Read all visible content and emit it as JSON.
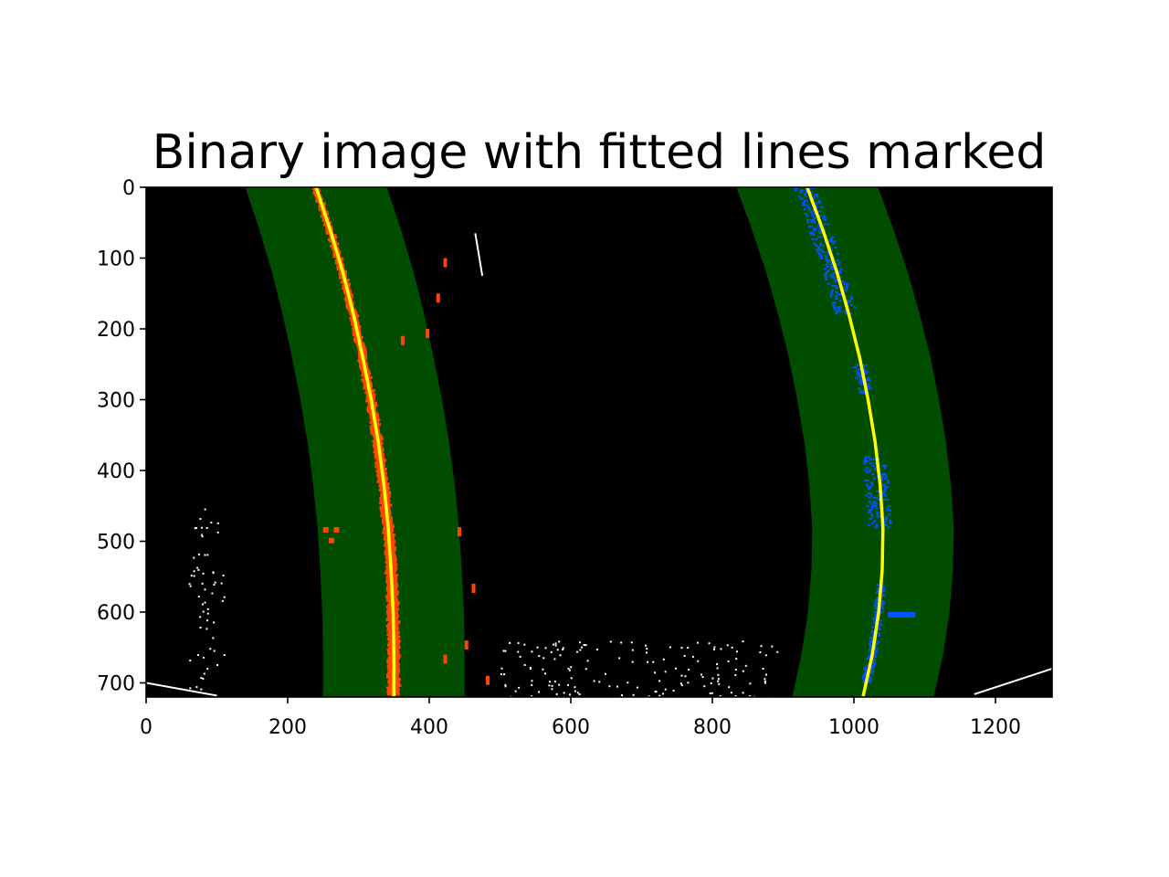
{
  "chart_data": {
    "type": "image",
    "title": "Binary image with fitted lines marked",
    "xlabel": "",
    "ylabel": "",
    "xlim": [
      0,
      1280
    ],
    "ylim": [
      720,
      0
    ],
    "x_ticks": [
      0,
      200,
      400,
      600,
      800,
      1000,
      1200
    ],
    "y_ticks": [
      0,
      100,
      200,
      300,
      400,
      500,
      600,
      700
    ],
    "grid": false,
    "colors": {
      "background": "#000000",
      "search_window": "#004d00",
      "left_pixels": "#ff4500",
      "right_pixels": "#0055ff",
      "fit_line": "#ffff00",
      "noise": "#ffffff"
    },
    "series": [
      {
        "name": "",
        "kind": "fitted-line",
        "y": [
          0,
          60,
          120,
          180,
          240,
          300,
          360,
          420,
          480,
          540,
          600,
          660,
          719
        ],
        "x": [
          240,
          260,
          278,
          293,
          306,
          318,
          328,
          336,
          342,
          346,
          349,
          350,
          350
        ],
        "window_margin": 100
      },
      {
        "name": "",
        "kind": "fitted-line",
        "y": [
          0,
          60,
          120,
          180,
          240,
          300,
          360,
          420,
          480,
          540,
          600,
          660,
          719
        ],
        "x": [
          934,
          956,
          976,
          993,
          1008,
          1020,
          1030,
          1037,
          1041,
          1040,
          1035,
          1026,
          1013
        ],
        "window_margin": 100
      }
    ]
  }
}
